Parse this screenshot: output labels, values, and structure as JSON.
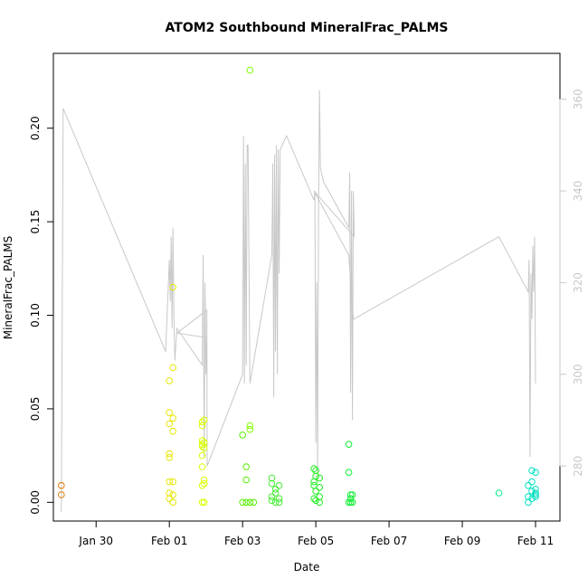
{
  "chart_data": {
    "type": "scatter",
    "title": "ATOM2 Southbound MineralFrac_PALMS",
    "xlabel": "Date",
    "ylabel": "MineralFrac_PALMS",
    "x_ticks": [
      "Jan 30",
      "Feb 01",
      "Feb 03",
      "Feb 05",
      "Feb 07",
      "Feb 09",
      "Feb 11"
    ],
    "y_ticks": [
      "0.00",
      "0.05",
      "0.10",
      "0.15",
      "0.20"
    ],
    "y_right_ticks": [
      "280",
      "300",
      "320",
      "340",
      "360"
    ],
    "xlim_days": [
      "2017-01-28T20:00",
      "2017-02-11T16:00"
    ],
    "ylim": [
      -0.01,
      0.24
    ],
    "y_right_lim": [
      268,
      370
    ],
    "grid": false,
    "series": [
      {
        "points": [
          [
            "2017-01-29T01:12",
            0.009,
            "#e07a00"
          ],
          [
            "2017-01-29T01:12",
            0.004,
            "#e07a00"
          ],
          [
            "2017-02-01T00:00",
            0.065,
            "#e6e600"
          ],
          [
            "2017-02-01T00:00",
            0.048,
            "#e6e600"
          ],
          [
            "2017-02-01T00:00",
            0.042,
            "#e6e600"
          ],
          [
            "2017-02-01T00:00",
            0.026,
            "#e6e600"
          ],
          [
            "2017-02-01T00:00",
            0.024,
            "#e6e600"
          ],
          [
            "2017-02-01T00:00",
            0.011,
            "#e6e600"
          ],
          [
            "2017-02-01T00:00",
            0.005,
            "#e6e600"
          ],
          [
            "2017-02-01T00:00",
            0.002,
            "#e6e600"
          ],
          [
            "2017-02-01T02:24",
            0.115,
            "#e6e600"
          ],
          [
            "2017-02-01T02:24",
            0.072,
            "#e6e600"
          ],
          [
            "2017-02-01T02:24",
            0.045,
            "#e6e600"
          ],
          [
            "2017-02-01T02:24",
            0.038,
            "#e6e600"
          ],
          [
            "2017-02-01T02:24",
            0.011,
            "#e6e600"
          ],
          [
            "2017-02-01T02:24",
            0.004,
            "#e6e600"
          ],
          [
            "2017-02-01T02:24",
            0.0,
            "#e6e600"
          ],
          [
            "2017-02-01T21:36",
            0.043,
            "#d9ff00"
          ],
          [
            "2017-02-01T21:36",
            0.041,
            "#d9ff00"
          ],
          [
            "2017-02-01T21:36",
            0.033,
            "#d9ff00"
          ],
          [
            "2017-02-01T21:36",
            0.031,
            "#d9ff00"
          ],
          [
            "2017-02-01T21:36",
            0.03,
            "#d9ff00"
          ],
          [
            "2017-02-01T21:36",
            0.025,
            "#d9ff00"
          ],
          [
            "2017-02-01T21:36",
            0.019,
            "#d9ff00"
          ],
          [
            "2017-02-01T21:36",
            0.009,
            "#d9ff00"
          ],
          [
            "2017-02-01T21:36",
            0.0,
            "#d9ff00"
          ],
          [
            "2017-02-01T22:48",
            0.044,
            "#d9ff00"
          ],
          [
            "2017-02-01T22:48",
            0.032,
            "#d9ff00"
          ],
          [
            "2017-02-01T22:48",
            0.029,
            "#d9ff00"
          ],
          [
            "2017-02-01T22:48",
            0.012,
            "#d9ff00"
          ],
          [
            "2017-02-01T22:48",
            0.01,
            "#d9ff00"
          ],
          [
            "2017-02-01T22:48",
            0.0,
            "#d9ff00"
          ],
          [
            "2017-02-03T00:00",
            0.0,
            "#55ee00"
          ],
          [
            "2017-02-03T00:00",
            0.036,
            "#55ee00"
          ],
          [
            "2017-02-03T02:24",
            0.0,
            "#55ee00"
          ],
          [
            "2017-02-03T02:24",
            0.012,
            "#55ee00"
          ],
          [
            "2017-02-03T02:24",
            0.019,
            "#55ee00"
          ],
          [
            "2017-02-03T04:48",
            0.231,
            "#7fff00"
          ],
          [
            "2017-02-03T04:48",
            0.041,
            "#7fff00"
          ],
          [
            "2017-02-03T04:48",
            0.039,
            "#7fff00"
          ],
          [
            "2017-02-03T04:48",
            0.0,
            "#55ee00"
          ],
          [
            "2017-02-03T07:12",
            0.0,
            "#55ee00"
          ],
          [
            "2017-02-03T19:12",
            0.013,
            "#44ee33"
          ],
          [
            "2017-02-03T19:12",
            0.01,
            "#44ee33"
          ],
          [
            "2017-02-03T19:12",
            0.003,
            "#44ee33"
          ],
          [
            "2017-02-03T19:12",
            0.001,
            "#44ee33"
          ],
          [
            "2017-02-03T21:36",
            0.007,
            "#44ee33"
          ],
          [
            "2017-02-03T21:36",
            0.005,
            "#44ee33"
          ],
          [
            "2017-02-03T21:36",
            0.0,
            "#44ee33"
          ],
          [
            "2017-02-04T00:00",
            0.009,
            "#44ee33"
          ],
          [
            "2017-02-04T00:00",
            0.002,
            "#44ee33"
          ],
          [
            "2017-02-04T00:00",
            0.0,
            "#44ee33"
          ],
          [
            "2017-02-04T22:48",
            0.018,
            "#22ee22"
          ],
          [
            "2017-02-04T22:48",
            0.011,
            "#22ee22"
          ],
          [
            "2017-02-04T22:48",
            0.009,
            "#22ee22"
          ],
          [
            "2017-02-04T22:48",
            0.002,
            "#22ee22"
          ],
          [
            "2017-02-05T00:00",
            0.017,
            "#22ee22"
          ],
          [
            "2017-02-05T00:00",
            0.014,
            "#22ee22"
          ],
          [
            "2017-02-05T00:00",
            0.006,
            "#22ee22"
          ],
          [
            "2017-02-05T00:00",
            0.001,
            "#22ee22"
          ],
          [
            "2017-02-05T02:24",
            0.013,
            "#22ee22"
          ],
          [
            "2017-02-05T02:24",
            0.008,
            "#22ee22"
          ],
          [
            "2017-02-05T02:24",
            0.003,
            "#22ee22"
          ],
          [
            "2017-02-05T02:24",
            0.0,
            "#22ee22"
          ],
          [
            "2017-02-05T21:36",
            0.031,
            "#11ee33"
          ],
          [
            "2017-02-05T21:36",
            0.016,
            "#11ee33"
          ],
          [
            "2017-02-05T21:36",
            0.0,
            "#11ee33"
          ],
          [
            "2017-02-05T22:48",
            0.004,
            "#11ee33"
          ],
          [
            "2017-02-05T22:48",
            0.002,
            "#11ee33"
          ],
          [
            "2017-02-05T22:48",
            0.0,
            "#11ee33"
          ],
          [
            "2017-02-06T00:00",
            0.004,
            "#11ee33"
          ],
          [
            "2017-02-06T00:00",
            0.0,
            "#11ee33"
          ],
          [
            "2017-02-10T00:00",
            0.005,
            "#00ee88"
          ],
          [
            "2017-02-10T19:12",
            0.009,
            "#00e0c0"
          ],
          [
            "2017-02-10T19:12",
            0.003,
            "#00e0c0"
          ],
          [
            "2017-02-10T19:12",
            0.0,
            "#00e0c0"
          ],
          [
            "2017-02-10T21:36",
            0.017,
            "#00e0c0"
          ],
          [
            "2017-02-10T21:36",
            0.011,
            "#00e0c0"
          ],
          [
            "2017-02-10T21:36",
            0.006,
            "#00e0c0"
          ],
          [
            "2017-02-10T21:36",
            0.002,
            "#00e0c0"
          ],
          [
            "2017-02-11T00:00",
            0.016,
            "#00e0c0"
          ],
          [
            "2017-02-11T00:00",
            0.007,
            "#00e0c0"
          ],
          [
            "2017-02-11T00:00",
            0.004,
            "#00e0c0"
          ],
          [
            "2017-02-11T00:00",
            0.003,
            "#00e0c0"
          ],
          [
            "2017-02-11T00:00",
            0.005,
            "#00e0c0"
          ]
        ]
      },
      {
        "axis": "right",
        "color": "#c8c8c8",
        "line": [
          [
            "2017-01-29T01:12",
            270
          ],
          [
            "2017-01-29T02:24",
            358
          ],
          [
            "2017-01-31T21:36",
            305
          ],
          [
            "2017-02-01T00:00",
            325
          ],
          [
            "2017-02-01T00:36",
            316
          ],
          [
            "2017-02-01T01:12",
            330
          ],
          [
            "2017-02-01T01:48",
            310
          ],
          [
            "2017-02-01T02:24",
            332
          ],
          [
            "2017-02-01T03:00",
            312
          ],
          [
            "2017-02-01T03:36",
            303
          ],
          [
            "2017-02-01T05:00",
            310
          ],
          [
            "2017-02-01T21:36",
            302
          ],
          [
            "2017-02-01T22:12",
            326
          ],
          [
            "2017-02-01T22:48",
            282
          ],
          [
            "2017-02-01T23:24",
            320
          ],
          [
            "2017-02-02T00:00",
            300
          ],
          [
            "2017-02-02T00:36",
            308
          ],
          [
            "2017-02-01T05:00",
            309
          ],
          [
            "2017-02-02T00:36",
            314
          ],
          [
            "2017-02-02T00:48",
            280
          ],
          [
            "2017-02-03T00:00",
            300
          ],
          [
            "2017-02-03T00:36",
            352
          ],
          [
            "2017-02-03T01:12",
            298
          ],
          [
            "2017-02-03T01:48",
            346
          ],
          [
            "2017-02-03T02:24",
            302
          ],
          [
            "2017-02-03T03:00",
            350
          ],
          [
            "2017-02-03T03:36",
            350
          ],
          [
            "2017-02-03T04:48",
            298
          ],
          [
            "2017-02-03T19:12",
            326
          ],
          [
            "2017-02-03T19:48",
            346
          ],
          [
            "2017-02-03T20:24",
            295
          ],
          [
            "2017-02-03T21:00",
            348
          ],
          [
            "2017-02-03T21:36",
            305
          ],
          [
            "2017-02-03T22:12",
            350
          ],
          [
            "2017-02-03T22:48",
            300
          ],
          [
            "2017-02-03T23:24",
            349
          ],
          [
            "2017-02-04T00:00",
            322
          ],
          [
            "2017-02-04T00:36",
            349
          ],
          [
            "2017-02-04T04:48",
            352
          ],
          [
            "2017-02-04T22:48",
            338
          ],
          [
            "2017-02-04T23:24",
            340
          ],
          [
            "2017-02-05T00:00",
            285
          ],
          [
            "2017-02-05T00:36",
            320
          ],
          [
            "2017-02-05T01:12",
            278
          ],
          [
            "2017-02-05T01:48",
            338
          ],
          [
            "2017-02-05T02:24",
            362
          ],
          [
            "2017-02-05T03:00",
            345
          ],
          [
            "2017-02-05T05:00",
            342
          ],
          [
            "2017-02-05T21:36",
            332
          ],
          [
            "2017-02-05T22:12",
            344
          ],
          [
            "2017-02-05T22:48",
            296
          ],
          [
            "2017-02-05T23:24",
            340
          ],
          [
            "2017-02-06T00:00",
            290
          ],
          [
            "2017-02-06T00:36",
            340
          ],
          [
            "2017-02-06T01:12",
            330
          ],
          [
            "2017-02-04T22:48",
            340
          ],
          [
            "2017-02-05T21:36",
            326
          ],
          [
            "2017-02-06T00:36",
            312
          ],
          [
            "2017-02-10T00:00",
            330
          ],
          [
            "2017-02-10T19:12",
            318
          ],
          [
            "2017-02-10T19:48",
            325
          ],
          [
            "2017-02-10T20:24",
            282
          ],
          [
            "2017-02-10T21:00",
            322
          ],
          [
            "2017-02-10T21:36",
            312
          ],
          [
            "2017-02-10T22:12",
            328
          ],
          [
            "2017-02-10T22:48",
            318
          ],
          [
            "2017-02-10T23:24",
            330
          ],
          [
            "2017-02-11T00:00",
            298
          ]
        ]
      }
    ]
  }
}
